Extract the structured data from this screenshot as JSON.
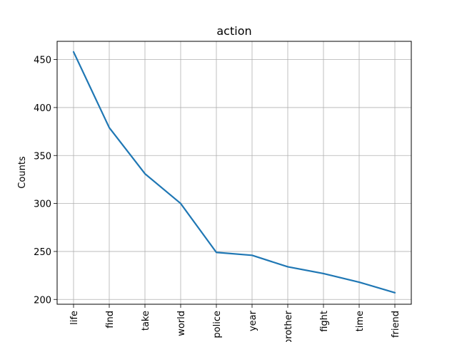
{
  "chart_data": {
    "type": "line",
    "title": "action",
    "xlabel": "",
    "ylabel": "Counts",
    "categories": [
      "life",
      "find",
      "take",
      "world",
      "police",
      "year",
      "brother",
      "fight",
      "time",
      "friend"
    ],
    "values": [
      458,
      379,
      331,
      300,
      249,
      246,
      234,
      227,
      218,
      207
    ],
    "ylim": [
      195,
      469
    ],
    "yticks": [
      200,
      250,
      300,
      350,
      400,
      450
    ],
    "grid": true,
    "line_color": "#1f77b4"
  }
}
